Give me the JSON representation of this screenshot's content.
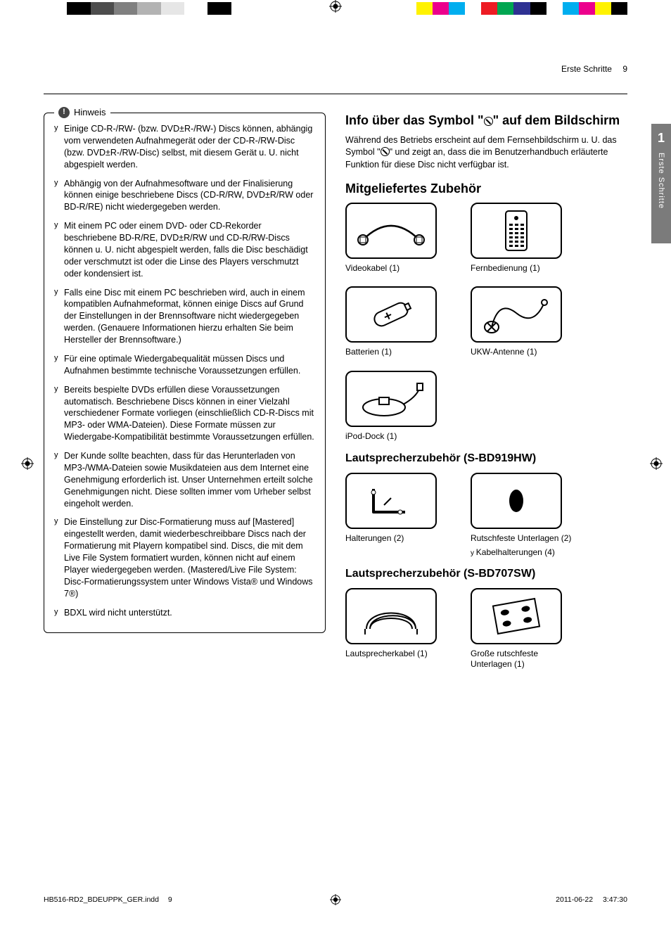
{
  "colorbar": [
    "#ffffff",
    "#fff200",
    "#ec008c",
    "#00aeef",
    "#ffffff",
    "#ed1c24",
    "#00a651",
    "#2e3192",
    "#000000",
    "#5b5b5b",
    "#8a8a8a",
    "#adadad",
    "#cccccc",
    "#ffffff",
    "#000000",
    "#ffffff",
    "#fff200",
    "#00a651",
    "#00aeef",
    "#2e3192",
    "#ec008c",
    "#ed1c24",
    "#ffffff",
    "#00aeef",
    "#ec008c",
    "#fff200",
    "#000000"
  ],
  "running_head": {
    "section": "Erste Schritte",
    "page": "9"
  },
  "side_tab": {
    "number": "1",
    "label": "Erste Schritte"
  },
  "hinweis": {
    "badge": "!",
    "title": "Hinweis",
    "items": [
      "Einige CD-R-/RW- (bzw. DVD±R-/RW-) Discs können, abhängig vom verwendeten Aufnahmegerät oder der CD-R-/RW-Disc (bzw. DVD±R-/RW-Disc) selbst, mit diesem Gerät u. U. nicht abgespielt werden.",
      "Abhängig von der Aufnahmesoftware und der Finalisierung können einige beschriebene Discs (CD-R/RW, DVD±R/RW oder BD-R/RE) nicht wiedergegeben werden.",
      "Mit einem PC oder einem DVD- oder CD-Rekorder beschriebene BD-R/RE, DVD±R/RW und CD-R/RW-Discs können u. U. nicht abgespielt werden, falls die Disc beschädigt oder verschmutzt ist oder die Linse des Players verschmutzt oder kondensiert ist.",
      "Falls eine Disc mit einem PC beschrieben wird, auch in einem kompatiblen Aufnahmeformat, können einige Discs auf Grund der Einstellungen in der Brennsoftware nicht wiedergegeben werden. (Genauere Informationen hierzu erhalten Sie beim Hersteller der Brennsoftware.)",
      "Für eine optimale Wiedergabequalität müssen Discs und Aufnahmen bestimmte technische Voraussetzungen erfüllen.",
      "Bereits bespielte DVDs erfüllen diese Voraussetzungen automatisch. Beschriebene Discs können in einer Vielzahl verschiedener Formate vorliegen (einschließlich CD-R-Discs mit MP3- oder WMA-Dateien). Diese Formate müssen zur Wiedergabe-Kompatibilität bestimmte Voraussetzungen erfüllen.",
      "Der Kunde sollte beachten, dass für das Herunterladen von MP3-/WMA-Dateien sowie Musikdateien aus dem Internet eine Genehmigung erforderlich ist. Unser Unternehmen erteilt solche Genehmigungen nicht. Diese sollten immer vom Urheber selbst eingeholt werden.",
      "Die Einstellung zur Disc-Formatierung muss auf [Mastered] eingestellt werden, damit wiederbeschreibbare Discs nach der Formatierung mit Playern kompatibel sind. Discs, die mit dem Live File System formatiert wurden, können nicht auf einem Player wiedergegeben werden. (Mastered/Live File System: Disc-Formatierungssystem unter Windows Vista® und Windows 7®)",
      "BDXL wird nicht unterstützt."
    ]
  },
  "right": {
    "symbol_heading_a": "Info über das Symbol \"",
    "symbol_heading_b": "\" auf dem Bildschirm",
    "symbol_body_a": "Während des Betriebs erscheint auf dem Fernsehbildschirm u. U. das Symbol \"",
    "symbol_body_b": "\" und zeigt an, dass die im Benutzerhandbuch erläuterte Funktion für diese Disc nicht verfügbar ist.",
    "accessories_heading": "Mitgeliefertes Zubehör",
    "accessories": [
      {
        "label": "Videokabel (1)",
        "icon": "cable"
      },
      {
        "label": "Fernbedienung (1)",
        "icon": "remote"
      },
      {
        "label": "Batterien (1)",
        "icon": "battery"
      },
      {
        "label": "UKW-Antenne (1)",
        "icon": "antenna"
      },
      {
        "label": "iPod-Dock (1)",
        "icon": "dock"
      }
    ],
    "speaker1_heading": "Lautsprecherzubehör (S-BD919HW)",
    "speaker1": [
      {
        "label": "Halterungen (2)",
        "icon": "bracket"
      },
      {
        "label": "Rutschfeste Unterlagen (2)",
        "icon": "pad",
        "sub": "Kabelhalterungen (4)"
      }
    ],
    "speaker2_heading": "Lautsprecherzubehör (S-BD707SW)",
    "speaker2": [
      {
        "label": "Lautsprecherkabel (1)",
        "icon": "speakercable"
      },
      {
        "label": "Große rutschfeste Unterlagen (1)",
        "icon": "bigpads"
      }
    ]
  },
  "footer": {
    "file": "HB516-RD2_BDEUPPK_GER.indd",
    "page": "9",
    "date": "2011-06-22",
    "time": "3:47:30"
  }
}
